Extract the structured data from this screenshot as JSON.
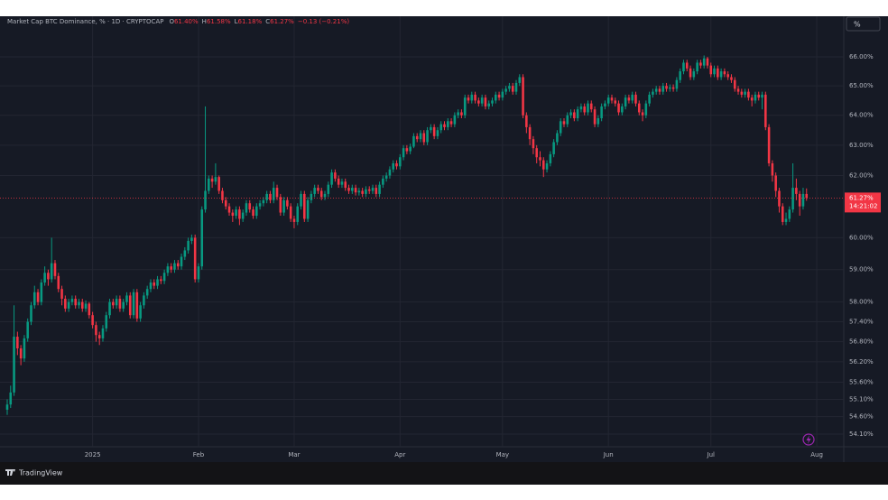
{
  "chart_data": {
    "type": "candlestick",
    "title": "Market Cap BTC Dominance, % · 1D · CRYPTOCAP",
    "ohlc_header": [
      {
        "key": "O",
        "label": "61.40%"
      },
      {
        "key": "H",
        "label": "61.58%"
      },
      {
        "key": "L",
        "label": "61.18%"
      },
      {
        "key": "C",
        "label": "61.27%"
      }
    ],
    "change_label": "−0.13 (−0.21%)",
    "last_price_label": "61.27%",
    "countdown": "14:21:02",
    "up_color": "#089981",
    "down_color": "#f23645",
    "log_scale": true,
    "grid": true,
    "xlim": [
      -2.11,
      244.9
    ],
    "ylim": [
      53.74,
      67.43
    ],
    "xticks": [
      {
        "value": 25,
        "label": "2025"
      },
      {
        "value": 56,
        "label": "Feb"
      },
      {
        "value": 84,
        "label": "Mar"
      },
      {
        "value": 115,
        "label": "Apr"
      },
      {
        "value": 145,
        "label": "May"
      },
      {
        "value": 176,
        "label": "Jun"
      },
      {
        "value": 206,
        "label": "Jul"
      },
      {
        "value": 237,
        "label": "Aug"
      }
    ],
    "yticks": [
      {
        "value": 66,
        "label": "66.00%"
      },
      {
        "value": 65,
        "label": "65.00%"
      },
      {
        "value": 64,
        "label": "64.00%"
      },
      {
        "value": 63,
        "label": "63.00%"
      },
      {
        "value": 62,
        "label": "62.00%"
      },
      {
        "value": 60,
        "label": "60.00%"
      },
      {
        "value": 59,
        "label": "59.00%"
      },
      {
        "value": 58,
        "label": "58.00%"
      },
      {
        "value": 57.4,
        "label": "57.40%"
      },
      {
        "value": 56.8,
        "label": "56.80%"
      },
      {
        "value": 56.2,
        "label": "56.20%"
      },
      {
        "value": 55.6,
        "label": "55.60%"
      },
      {
        "value": 55.1,
        "label": "55.10%"
      },
      {
        "value": 54.6,
        "label": "54.60%"
      },
      {
        "value": 54.1,
        "label": "54.10%"
      }
    ],
    "open": [
      54.8,
      54.95,
      55.3,
      56.95,
      56.6,
      56.3,
      56.9,
      57.4,
      57.9,
      58.3,
      58,
      58.6,
      58.9,
      58.7,
      59.2,
      58.8,
      58.4,
      58.1,
      57.8,
      58,
      58.1,
      57.9,
      58,
      57.8,
      57.95,
      57.6,
      57.3,
      57,
      56.9,
      57.2,
      57.6,
      58,
      57.9,
      58.1,
      57.8,
      58,
      58.2,
      57.6,
      58.3,
      57.5,
      57.9,
      58.2,
      58.4,
      58.6,
      58.5,
      58.7,
      58.65,
      58.9,
      59.1,
      59,
      59.2,
      59.1,
      59.4,
      59.6,
      59.9,
      60,
      58.7,
      59.1,
      60.9,
      61.5,
      61.9,
      61.8,
      61.95,
      61.5,
      61.2,
      61,
      60.8,
      60.7,
      60.9,
      60.6,
      60.8,
      61.1,
      60.9,
      60.7,
      61,
      61.1,
      61.2,
      61.4,
      61.2,
      61.6,
      61.3,
      60.8,
      61.2,
      61,
      60.6,
      60.5,
      61,
      61.4,
      60.6,
      61.2,
      61.4,
      61.6,
      61.5,
      61.3,
      61.4,
      61.7,
      62.1,
      61.9,
      61.7,
      61.8,
      61.6,
      61.5,
      61.6,
      61.45,
      61.5,
      61.4,
      61.55,
      61.5,
      61.6,
      61.4,
      61.7,
      61.9,
      62,
      62.2,
      62.4,
      62.3,
      62.6,
      62.9,
      62.8,
      62.95,
      63.3,
      63.2,
      63.4,
      63.1,
      63.5,
      63.6,
      63.3,
      63.5,
      63.7,
      63.6,
      63.8,
      63.7,
      64,
      64.1,
      64,
      64.6,
      64.5,
      64.7,
      64.5,
      64.4,
      64.6,
      64.3,
      64.4,
      64.5,
      64.7,
      64.6,
      64.8,
      64.9,
      65,
      64.8,
      65.1,
      65.3,
      64,
      63.6,
      63.2,
      62.9,
      62.6,
      62.5,
      62.2,
      62.4,
      62.7,
      63.1,
      63.4,
      63.8,
      63.7,
      64,
      64.1,
      63.9,
      64.2,
      64.3,
      64.1,
      64.4,
      64.2,
      63.7,
      63.9,
      64.3,
      64.4,
      64.6,
      64.5,
      64.4,
      64.1,
      64.3,
      64.6,
      64.5,
      64.7,
      64.4,
      64.1,
      64,
      64.4,
      64.7,
      64.8,
      64.9,
      64.8,
      65,
      64.9,
      64.95,
      64.9,
      65.2,
      65.5,
      65.8,
      65.6,
      65.3,
      65.5,
      65.8,
      65.7,
      65.95,
      65.7,
      65.4,
      65.6,
      65.3,
      65.5,
      65.4,
      65.3,
      65.2,
      64.9,
      64.8,
      64.7,
      64.8,
      64.6,
      64.5,
      64.7,
      64.6,
      64.7,
      63.6,
      62.4,
      62,
      61.5,
      61,
      60.5,
      60.6,
      60.9,
      61.6,
      61.4,
      61,
      61.4
    ],
    "high": [
      55.1,
      55.5,
      57.9,
      57.1,
      56.7,
      57,
      57.5,
      58,
      58.5,
      58.4,
      58.7,
      59.1,
      59,
      60,
      59.3,
      58.9,
      58.5,
      58.2,
      58.1,
      58.2,
      58.2,
      58.1,
      58.1,
      58.05,
      58,
      57.7,
      57.4,
      57.1,
      57.3,
      57.7,
      58.1,
      58.1,
      58.2,
      58.2,
      58.1,
      58.3,
      58.3,
      58.4,
      58.4,
      58,
      58.3,
      58.5,
      58.7,
      58.7,
      58.8,
      58.8,
      59,
      59.2,
      59.2,
      59.3,
      59.3,
      59.5,
      59.7,
      60,
      60.1,
      60.1,
      59.2,
      61,
      64.3,
      62,
      62,
      62.4,
      62,
      61.6,
      61.3,
      61.1,
      60.9,
      61,
      61,
      60.9,
      61.2,
      61.2,
      61,
      61.1,
      61.2,
      61.3,
      61.5,
      61.5,
      61.8,
      61.7,
      61.4,
      61.3,
      61.3,
      61.1,
      60.7,
      61.1,
      61.5,
      61.5,
      61.3,
      61.5,
      61.7,
      61.7,
      61.6,
      61.5,
      61.8,
      62.2,
      62.2,
      62,
      61.9,
      61.9,
      61.7,
      61.7,
      61.7,
      61.6,
      61.6,
      61.65,
      61.65,
      61.7,
      61.7,
      61.8,
      62,
      62.1,
      62.3,
      62.5,
      62.5,
      62.7,
      63,
      63,
      63.05,
      63.4,
      63.4,
      63.5,
      63.5,
      63.6,
      63.7,
      63.7,
      63.6,
      63.8,
      63.8,
      63.9,
      63.9,
      64.1,
      64.2,
      64.2,
      64.7,
      64.7,
      64.8,
      64.8,
      64.6,
      64.7,
      64.7,
      64.5,
      64.6,
      64.8,
      64.8,
      64.9,
      65,
      65.1,
      65.1,
      65.2,
      65.4,
      65.4,
      64.1,
      63.7,
      63.3,
      63,
      62.8,
      62.6,
      62.5,
      62.8,
      63.2,
      63.5,
      63.9,
      63.9,
      64.1,
      64.2,
      64.2,
      64.3,
      64.4,
      64.4,
      64.5,
      64.5,
      64.3,
      64,
      64.4,
      64.5,
      64.7,
      64.7,
      64.6,
      64.5,
      64.4,
      64.7,
      64.7,
      64.8,
      64.8,
      64.5,
      64.2,
      64.5,
      64.8,
      64.9,
      65,
      65,
      65.1,
      65.1,
      65.05,
      65.05,
      65.3,
      65.6,
      65.9,
      65.9,
      65.7,
      65.6,
      65.9,
      65.9,
      66.05,
      66,
      65.8,
      65.7,
      65.7,
      65.6,
      65.6,
      65.5,
      65.4,
      65.3,
      65,
      64.9,
      64.9,
      64.9,
      64.7,
      64.8,
      64.8,
      64.8,
      64.8,
      63.7,
      62.5,
      62.1,
      61.6,
      61.1,
      60.8,
      61,
      62.4,
      61.9,
      61.5,
      61.6,
      61.58
    ],
    "low": [
      54.65,
      54.85,
      55.2,
      56.4,
      56.1,
      56.2,
      56.8,
      57.3,
      57.8,
      57.9,
      57.9,
      58.5,
      58.5,
      58.6,
      58.7,
      58.3,
      57.9,
      57.7,
      57.7,
      57.9,
      57.8,
      57.8,
      57.7,
      57.7,
      57.5,
      57.2,
      56.8,
      56.7,
      56.8,
      57.1,
      57.5,
      57.8,
      57.8,
      57.7,
      57.7,
      57.9,
      57.5,
      57.5,
      57.4,
      57.4,
      57.8,
      58.1,
      58.3,
      58.4,
      58.4,
      58.55,
      58.55,
      58.8,
      58.9,
      58.9,
      59,
      59,
      59.3,
      59.5,
      59.8,
      58.6,
      58.6,
      59,
      60.8,
      61.4,
      61.6,
      61.7,
      61.4,
      61.1,
      60.9,
      60.7,
      60.5,
      60.6,
      60.4,
      60.5,
      60.7,
      60.8,
      60.6,
      60.6,
      60.9,
      61,
      61.1,
      61.1,
      61.1,
      61.2,
      60.7,
      60.7,
      60.9,
      60.5,
      60.3,
      60.4,
      60.9,
      60.5,
      60.5,
      61.1,
      61.3,
      61.4,
      61.2,
      61.2,
      61.3,
      61.6,
      61.8,
      61.6,
      61.6,
      61.5,
      61.4,
      61.4,
      61.35,
      61.35,
      61.3,
      61.3,
      61.4,
      61.4,
      61.3,
      61.3,
      61.6,
      61.8,
      61.9,
      62.1,
      62.2,
      62.2,
      62.5,
      62.7,
      62.7,
      62.9,
      63.1,
      63.1,
      63,
      63,
      63.4,
      63.2,
      63.2,
      63.4,
      63.5,
      63.5,
      63.6,
      63.6,
      63.9,
      63.9,
      63.9,
      64.4,
      64.4,
      64.4,
      64.3,
      64.3,
      64.2,
      64.2,
      64.3,
      64.4,
      64.5,
      64.5,
      64.7,
      64.8,
      64.7,
      64.7,
      65,
      63.9,
      63.4,
      63,
      62.7,
      62.4,
      62.3,
      61.95,
      62.1,
      62.3,
      62.6,
      63,
      63.3,
      63.6,
      63.6,
      63.9,
      63.8,
      63.8,
      64.1,
      64,
      64,
      64.1,
      63.6,
      63.6,
      63.8,
      64.2,
      64.3,
      64.4,
      64.3,
      64,
      64,
      64.2,
      64.4,
      64.4,
      64.3,
      64,
      63.8,
      63.9,
      64.3,
      64.6,
      64.7,
      64.7,
      64.7,
      64.8,
      64.8,
      64.8,
      64.8,
      65.1,
      65.4,
      65.5,
      65.2,
      65.2,
      65.4,
      65.6,
      65.6,
      65.6,
      65.3,
      65.3,
      65.2,
      65.2,
      65.3,
      65.2,
      65.1,
      64.8,
      64.7,
      64.6,
      64.6,
      64.5,
      64.3,
      64.4,
      64.5,
      64.2,
      63.5,
      62.3,
      61.8,
      61.3,
      60.8,
      60.4,
      60.4,
      60.5,
      60.8,
      61.2,
      60.7,
      60.9,
      61.18
    ],
    "close": [
      54.95,
      55.3,
      56.95,
      56.6,
      56.3,
      56.9,
      57.4,
      57.9,
      58.3,
      58,
      58.6,
      58.9,
      58.7,
      59.2,
      58.8,
      58.4,
      58.1,
      57.8,
      58,
      58.1,
      57.9,
      58,
      57.8,
      57.95,
      57.6,
      57.3,
      57,
      56.9,
      57.2,
      57.6,
      58,
      57.9,
      58.1,
      57.8,
      58,
      58.2,
      57.6,
      58.3,
      57.5,
      57.9,
      58.2,
      58.4,
      58.6,
      58.5,
      58.7,
      58.65,
      58.9,
      59.1,
      59,
      59.2,
      59.1,
      59.4,
      59.6,
      59.9,
      60,
      58.7,
      59.1,
      60.9,
      61.5,
      61.9,
      61.8,
      61.95,
      61.5,
      61.2,
      61,
      60.8,
      60.7,
      60.9,
      60.6,
      60.8,
      61.1,
      60.9,
      60.7,
      61,
      61.1,
      61.2,
      61.4,
      61.2,
      61.6,
      61.3,
      60.8,
      61.2,
      61,
      60.6,
      60.5,
      61,
      61.4,
      60.6,
      61.2,
      61.4,
      61.6,
      61.5,
      61.3,
      61.4,
      61.7,
      62.1,
      61.9,
      61.7,
      61.8,
      61.6,
      61.5,
      61.6,
      61.45,
      61.5,
      61.4,
      61.55,
      61.5,
      61.6,
      61.4,
      61.7,
      61.9,
      62,
      62.2,
      62.4,
      62.3,
      62.6,
      62.9,
      62.8,
      62.95,
      63.3,
      63.2,
      63.4,
      63.1,
      63.5,
      63.6,
      63.3,
      63.5,
      63.7,
      63.6,
      63.8,
      63.7,
      64,
      64.1,
      64,
      64.6,
      64.5,
      64.7,
      64.5,
      64.4,
      64.6,
      64.3,
      64.4,
      64.5,
      64.7,
      64.6,
      64.8,
      64.9,
      65,
      64.8,
      65.1,
      65.3,
      64,
      63.6,
      63.2,
      62.9,
      62.6,
      62.5,
      62.2,
      62.4,
      62.7,
      63.1,
      63.4,
      63.8,
      63.7,
      64,
      64.1,
      63.9,
      64.2,
      64.3,
      64.1,
      64.4,
      64.2,
      63.7,
      63.9,
      64.3,
      64.4,
      64.6,
      64.5,
      64.4,
      64.1,
      64.3,
      64.6,
      64.5,
      64.7,
      64.4,
      64.1,
      64,
      64.4,
      64.7,
      64.8,
      64.9,
      64.8,
      65,
      64.9,
      64.95,
      64.9,
      65.2,
      65.5,
      65.8,
      65.6,
      65.3,
      65.5,
      65.8,
      65.7,
      65.95,
      65.7,
      65.4,
      65.6,
      65.3,
      65.5,
      65.4,
      65.3,
      65.2,
      64.9,
      64.8,
      64.7,
      64.8,
      64.6,
      64.5,
      64.7,
      64.6,
      64.7,
      63.6,
      62.4,
      62,
      61.5,
      61,
      60.5,
      60.6,
      60.9,
      61.6,
      61.4,
      61,
      61.4,
      61.27
    ]
  },
  "ui": {
    "scale_button": "%",
    "brand": "TradingView"
  }
}
